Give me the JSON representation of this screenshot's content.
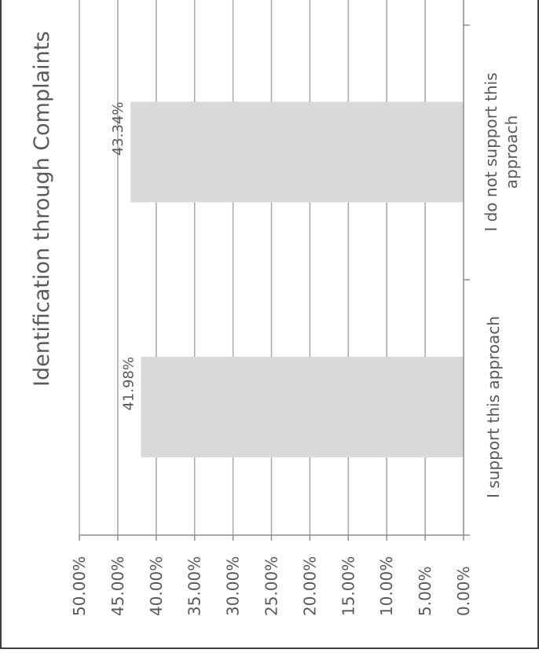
{
  "chart_data": {
    "type": "bar",
    "orientation": "horizontal",
    "rotation": "chart drawn rotated 90 degrees clockwise",
    "title": "Identification through Complaints",
    "categories": [
      "I support this approach",
      "I do not support this approach"
    ],
    "values": [
      41.98,
      43.34
    ],
    "data_labels": [
      "41.98%",
      "43.34%"
    ],
    "value_axis": {
      "min": 0,
      "max": 50,
      "step": 5,
      "tick_labels": [
        "0.00%",
        "5.00%",
        "10.00%",
        "15.00%",
        "20.00%",
        "25.00%",
        "30.00%",
        "35.00%",
        "40.00%",
        "45.00%",
        "50.00%"
      ]
    },
    "category_labels": [
      [
        "I support this approach"
      ],
      [
        "I do not support this",
        "approach"
      ]
    ],
    "gridlines": true,
    "legend": "none",
    "colors": {
      "bar": "#d9d9d9",
      "gridline": "#a6a6a6",
      "axis": "#8c8c8c",
      "text": "#595959",
      "frame": "#000000"
    }
  }
}
